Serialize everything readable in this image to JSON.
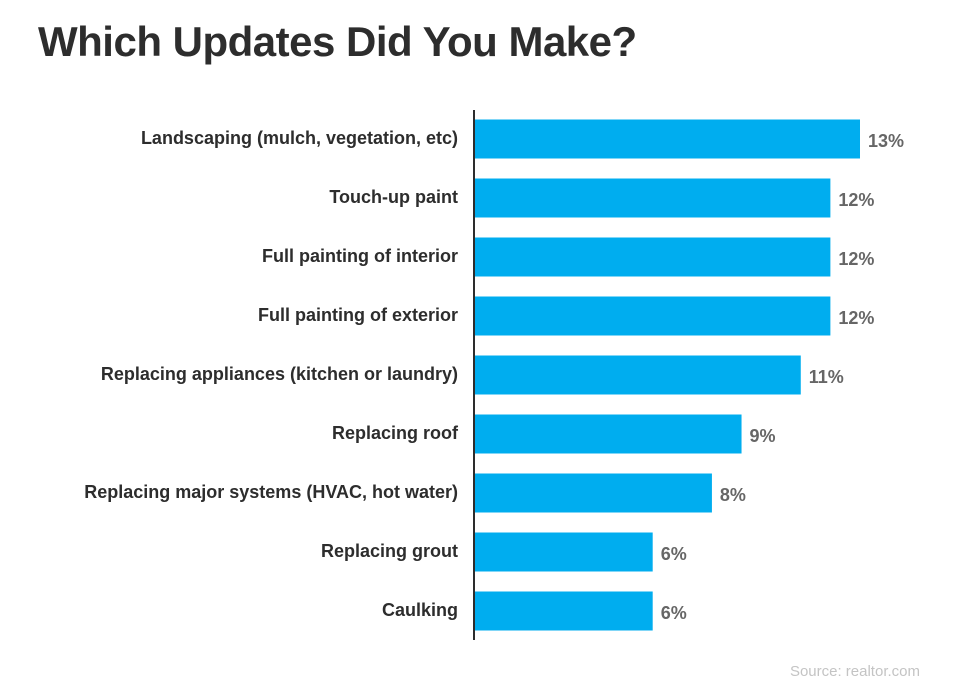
{
  "chart_data": {
    "type": "bar",
    "orientation": "horizontal",
    "title": "Which Updates Did You Make?",
    "categories": [
      "Landscaping (mulch, vegetation, etc)",
      "Touch-up paint",
      "Full painting of interior",
      "Full painting of exterior",
      "Replacing appliances (kitchen or laundry)",
      "Replacing roof",
      "Replacing major systems (HVAC, hot water)",
      "Replacing grout",
      "Caulking"
    ],
    "values": [
      13,
      12,
      12,
      12,
      11,
      9,
      8,
      6,
      6
    ],
    "value_labels": [
      "13%",
      "12%",
      "12%",
      "12%",
      "11%",
      "9%",
      "8%",
      "6%",
      "6%"
    ],
    "unit": "%",
    "xlim": [
      0,
      13
    ],
    "grid": false,
    "legend": "none",
    "bar_color": "#00adef"
  },
  "footer": {
    "source": "Source: realtor.com"
  }
}
